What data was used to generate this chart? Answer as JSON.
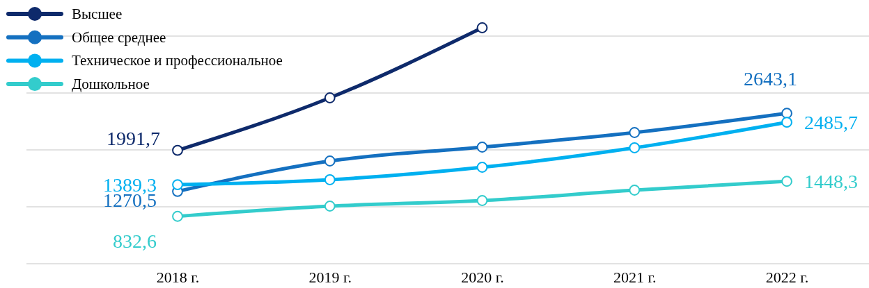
{
  "chart_data": {
    "type": "line",
    "categories": [
      "2018 г.",
      "2019 г.",
      "2020 г.",
      "2021 г.",
      "2022 г."
    ],
    "yticks": [
      {
        "value": 0,
        "label": null
      },
      {
        "value": 1000,
        "label": null
      },
      {
        "value": 2000,
        "label": null
      },
      {
        "value": 3000,
        "label": null
      },
      {
        "value": 4000,
        "label": null
      }
    ],
    "tick_labels": "x",
    "grid": "y",
    "legend": "top left",
    "marker": "circle",
    "line_style": "solid",
    "series": [
      {
        "name": "Высшее",
        "color": "#0e2a6b",
        "values": [
          1991.7,
          2915,
          4146,
          null,
          null
        ],
        "value_labels": [
          "1991,7",
          null,
          null,
          null,
          null
        ]
      },
      {
        "name": "Общее среднее",
        "color": "#1470c0",
        "values": [
          1270.5,
          1805,
          2049,
          2305,
          2643.1
        ],
        "value_labels": [
          "1270,5",
          null,
          null,
          null,
          "2643,1"
        ]
      },
      {
        "name": "Техническое и профессиональное",
        "color": "#00b0f0",
        "values": [
          1389.3,
          1476,
          1695,
          2037,
          2485.7
        ],
        "value_labels": [
          "1389,3",
          null,
          null,
          null,
          "2485,7"
        ]
      },
      {
        "name": "Дошкольное",
        "color": "#33cccc",
        "values": [
          832.6,
          1012,
          1110,
          1293,
          1448.3
        ],
        "value_labels": [
          "832,6",
          null,
          null,
          null,
          "1448,3"
        ]
      }
    ]
  }
}
